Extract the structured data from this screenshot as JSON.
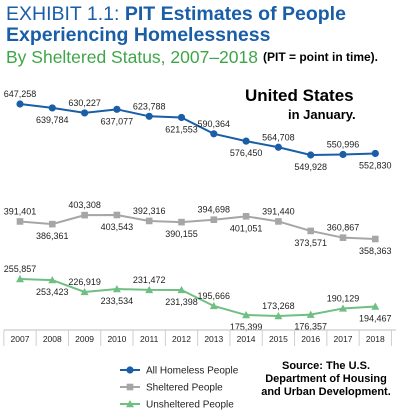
{
  "header": {
    "exhibit_label": "EXHIBIT 1.1:",
    "title_part1": "PIT Estimates of People",
    "title_part2": "Experiencing Homelessness",
    "subtitle": "By Sheltered Status, 2007–2018",
    "note": "(PIT = point in time)."
  },
  "annotation": {
    "place": "United States",
    "when": "in January."
  },
  "source": {
    "line1": "Source: The U.S.",
    "line2": "Department of Housing",
    "line3": "and Urban Development."
  },
  "colors": {
    "title_blue": "#1a5ea8",
    "subtitle_green": "#3fa648",
    "all_homeless": "#1a5ea8",
    "sheltered": "#a6a6a6",
    "unsheltered": "#6fbf82"
  },
  "chart_data": {
    "type": "line",
    "title": "PIT Estimates of People Experiencing Homelessness",
    "x": [
      "2007",
      "2008",
      "2009",
      "2010",
      "2011",
      "2012",
      "2013",
      "2014",
      "2015",
      "2016",
      "2017",
      "2018"
    ],
    "series": [
      {
        "name": "All Homeless People",
        "marker": "circle",
        "values": [
          647258,
          639784,
          630227,
          637077,
          623788,
          621553,
          590364,
          576450,
          564708,
          549928,
          550996,
          552830
        ],
        "labels": [
          "647,258",
          "639,784",
          "630,227",
          "637,077",
          "623,788",
          "621,553",
          "590,364",
          "576,450",
          "564,708",
          "549,928",
          "550,996",
          "552,830"
        ]
      },
      {
        "name": "Sheltered People",
        "marker": "square",
        "values": [
          391401,
          386361,
          403308,
          403543,
          392316,
          390155,
          394698,
          401051,
          391440,
          373571,
          360867,
          358363
        ],
        "labels": [
          "391,401",
          "386,361",
          "403,308",
          "403,543",
          "392,316",
          "390,155",
          "394,698",
          "401,051",
          "391,440",
          "373,571",
          "360,867",
          "358,363"
        ]
      },
      {
        "name": "Unsheltered People",
        "marker": "triangle",
        "values": [
          255857,
          253423,
          226919,
          233534,
          231472,
          231398,
          195666,
          175399,
          173268,
          176357,
          190129,
          194467
        ],
        "labels": [
          "255,857",
          "253,423",
          "226,919",
          "233,534",
          "231,472",
          "231,398",
          "195,666",
          "175,399",
          "173,268",
          "176,357",
          "190,129",
          "194,467"
        ]
      }
    ],
    "legend_position": "bottom-left",
    "grid": false
  }
}
